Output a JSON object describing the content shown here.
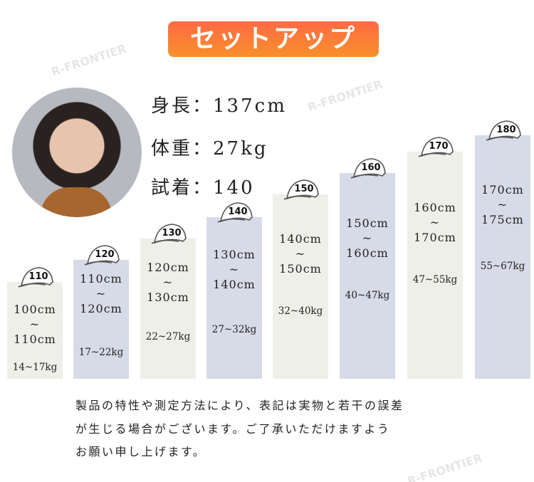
{
  "title": "セットアップ",
  "watermark": "R-FRONTIER",
  "model": {
    "height": "身長：137cm",
    "weight": "体重：27kg",
    "size": "試着：140"
  },
  "sizes": [
    {
      "size": "110",
      "from": "100cm",
      "to": "110cm",
      "weight": "14~17kg",
      "color": "#efefe9"
    },
    {
      "size": "120",
      "from": "110cm",
      "to": "120cm",
      "weight": "17~22kg",
      "color": "#d7dbe8"
    },
    {
      "size": "130",
      "from": "120cm",
      "to": "130cm",
      "weight": "22~27kg",
      "color": "#efefe9"
    },
    {
      "size": "140",
      "from": "130cm",
      "to": "140cm",
      "weight": "27~32kg",
      "color": "#d7dbe8"
    },
    {
      "size": "150",
      "from": "140cm",
      "to": "150cm",
      "weight": "32~40kg",
      "color": "#efefe9"
    },
    {
      "size": "160",
      "from": "150cm",
      "to": "160cm",
      "weight": "40~47kg",
      "color": "#d7dbe8"
    },
    {
      "size": "170",
      "from": "160cm",
      "to": "170cm",
      "weight": "47~55kg",
      "color": "#efefe9"
    },
    {
      "size": "180",
      "from": "170cm",
      "to": "175cm",
      "weight": "55~67kg",
      "color": "#d7dbe8"
    }
  ],
  "tilde": "~",
  "notes": [
    "製品の特性や測定方法により、表記は実物と若干の誤差",
    "が生じる場合がございます。ご了承いただけますよう",
    "お願い申し上げます。"
  ]
}
